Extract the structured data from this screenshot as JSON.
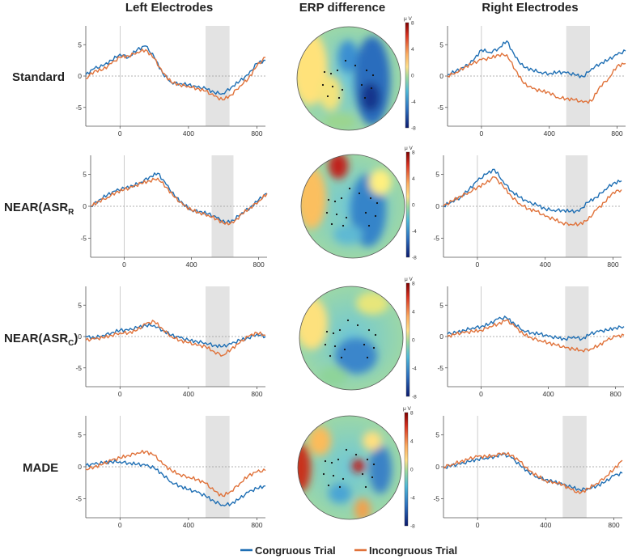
{
  "figure": {
    "col_titles": [
      "Left Electrodes",
      "ERP difference",
      "Right Electrodes"
    ],
    "rows": [
      {
        "label_main": "Standard",
        "label_sub": "",
        "label_tail": ""
      },
      {
        "label_main": "NEAR(ASR",
        "label_sub": "R",
        "label_tail": ""
      },
      {
        "label_main": "NEAR(ASR",
        "label_sub": "C",
        "label_tail": ")"
      },
      {
        "label_main": "MADE",
        "label_sub": "",
        "label_tail": ""
      }
    ],
    "colorbar": {
      "unit": "μ V",
      "ticks": [
        "8",
        "4",
        "0",
        "-4",
        "-8"
      ]
    },
    "legend": {
      "series1": "Congruous Trial",
      "series2": "Incongruous Trial"
    },
    "colors": {
      "congruous": "#1f6fb4",
      "incongruous": "#e0723a",
      "shade": "#e3e3e3"
    }
  },
  "chart_data": {
    "type": "line",
    "xlabel": "",
    "ylabel": "",
    "xlim": [
      -200,
      850
    ],
    "ylim": [
      8,
      -8
    ],
    "y_inverted": true,
    "xticks": [
      0,
      400,
      800
    ],
    "yticks": [
      -5,
      0,
      5
    ],
    "legend_position": "bottom",
    "panels": [
      {
        "row": "Standard",
        "side": "Left Electrodes",
        "shade": [
          500,
          640
        ],
        "x": [
          -200,
          -150,
          -100,
          -50,
          0,
          50,
          100,
          150,
          200,
          250,
          300,
          350,
          400,
          450,
          500,
          550,
          600,
          650,
          700,
          750,
          800,
          850
        ],
        "series": [
          {
            "name": "Congruous Trial",
            "values": [
              0.2,
              1.2,
              1.6,
              2.5,
              3.5,
              3.0,
              4.2,
              4.8,
              3.0,
              0.4,
              -1.0,
              -1.2,
              -1.4,
              -1.8,
              -2.0,
              -2.6,
              -2.8,
              -1.8,
              -0.8,
              0.2,
              2.0,
              2.5
            ]
          },
          {
            "name": "Incongruous Trial",
            "values": [
              -0.4,
              0.8,
              1.0,
              2.0,
              3.0,
              3.2,
              3.8,
              4.2,
              2.8,
              0.5,
              -1.0,
              -1.4,
              -1.6,
              -2.0,
              -2.4,
              -3.2,
              -3.8,
              -3.0,
              -1.6,
              -0.4,
              1.6,
              3.0
            ]
          }
        ]
      },
      {
        "row": "Standard",
        "side": "Right Electrodes",
        "shade": [
          500,
          640
        ],
        "x": [
          -200,
          -150,
          -100,
          -50,
          0,
          50,
          100,
          150,
          200,
          250,
          300,
          350,
          400,
          450,
          500,
          550,
          600,
          650,
          700,
          750,
          800,
          850
        ],
        "series": [
          {
            "name": "Congruous Trial",
            "values": [
              0.2,
              0.8,
              1.4,
              2.4,
              4.2,
              3.8,
              4.4,
              5.6,
              3.0,
              1.4,
              1.0,
              0.6,
              0.4,
              0.6,
              0.5,
              0.2,
              -0.1,
              1.2,
              2.0,
              2.6,
              3.4,
              4.0
            ]
          },
          {
            "name": "Incongruous Trial",
            "values": [
              0.0,
              0.6,
              1.4,
              2.0,
              2.6,
              2.8,
              3.4,
              3.4,
              1.0,
              -1.2,
              -2.0,
              -2.4,
              -2.6,
              -3.4,
              -3.6,
              -3.8,
              -4.2,
              -4.0,
              -1.6,
              -0.4,
              1.6,
              2.0
            ]
          }
        ]
      },
      {
        "row": "NEAR(ASR_R)",
        "side": "Left Electrodes",
        "shade": [
          520,
          650
        ],
        "x": [
          -200,
          -150,
          -100,
          -50,
          0,
          50,
          100,
          150,
          200,
          250,
          300,
          350,
          400,
          450,
          500,
          550,
          600,
          650,
          700,
          750,
          800,
          850
        ],
        "series": [
          {
            "name": "Congruous Trial",
            "values": [
              0.0,
              1.0,
              1.8,
              2.4,
              2.8,
              3.2,
              3.8,
              4.6,
              5.2,
              3.4,
              1.6,
              0.4,
              -0.6,
              -0.8,
              -1.2,
              -1.8,
              -2.6,
              -2.2,
              -1.0,
              -0.2,
              1.0,
              2.0
            ]
          },
          {
            "name": "Incongruous Trial",
            "values": [
              0.0,
              0.8,
              1.4,
              2.2,
              2.6,
              3.0,
              3.6,
              4.0,
              4.4,
              3.0,
              1.4,
              0.2,
              -0.6,
              -1.0,
              -1.4,
              -2.0,
              -2.8,
              -2.6,
              -1.2,
              -0.2,
              0.8,
              2.0
            ]
          }
        ]
      },
      {
        "row": "NEAR(ASR_R)",
        "side": "Right Electrodes",
        "shade": [
          520,
          650
        ],
        "x": [
          -200,
          -150,
          -100,
          -50,
          0,
          50,
          100,
          150,
          200,
          250,
          300,
          350,
          400,
          450,
          500,
          550,
          600,
          650,
          700,
          750,
          800,
          850
        ],
        "series": [
          {
            "name": "Congruous Trial",
            "values": [
              0.0,
              0.8,
              1.4,
              2.6,
              4.0,
              5.0,
              5.8,
              4.0,
              2.4,
              1.4,
              0.6,
              0.2,
              -0.4,
              -0.6,
              -0.6,
              -0.8,
              -0.8,
              0.6,
              1.4,
              2.6,
              3.6,
              4.0
            ]
          },
          {
            "name": "Incongruous Trial",
            "values": [
              0.0,
              0.8,
              1.6,
              2.2,
              3.0,
              3.6,
              4.6,
              3.2,
              1.6,
              0.4,
              -0.4,
              -0.8,
              -1.6,
              -2.0,
              -2.6,
              -2.8,
              -2.8,
              -2.2,
              -0.6,
              0.6,
              2.2,
              2.6
            ]
          }
        ]
      },
      {
        "row": "NEAR(ASR_C)",
        "side": "Left Electrodes",
        "shade": [
          500,
          640
        ],
        "x": [
          -200,
          -150,
          -100,
          -50,
          0,
          50,
          100,
          150,
          200,
          250,
          300,
          350,
          400,
          450,
          500,
          550,
          600,
          650,
          700,
          750,
          800,
          850
        ],
        "series": [
          {
            "name": "Congruous Trial",
            "values": [
              0.0,
              -0.2,
              0.2,
              0.6,
              1.0,
              1.0,
              1.4,
              1.8,
              1.8,
              1.0,
              0.2,
              -0.2,
              -0.6,
              -0.8,
              -1.0,
              -1.4,
              -1.6,
              -1.2,
              -0.6,
              -0.2,
              0.4,
              0.0
            ]
          },
          {
            "name": "Incongruous Trial",
            "values": [
              -0.6,
              -0.4,
              -0.2,
              0.2,
              0.6,
              0.6,
              1.0,
              2.0,
              2.4,
              1.2,
              0.0,
              -0.6,
              -1.0,
              -1.4,
              -1.6,
              -2.4,
              -3.0,
              -2.0,
              -1.0,
              0.0,
              0.6,
              0.2
            ]
          }
        ]
      },
      {
        "row": "NEAR(ASR_C)",
        "side": "Right Electrodes",
        "shade": [
          500,
          640
        ],
        "x": [
          -200,
          -150,
          -100,
          -50,
          0,
          50,
          100,
          150,
          200,
          250,
          300,
          350,
          400,
          450,
          500,
          550,
          600,
          650,
          700,
          750,
          800,
          850
        ],
        "series": [
          {
            "name": "Congruous Trial",
            "values": [
              0.4,
              0.6,
              1.0,
              1.4,
              1.6,
              2.0,
              2.8,
              3.0,
              2.0,
              1.0,
              0.6,
              0.4,
              0.0,
              -0.2,
              -0.4,
              0.0,
              -0.4,
              0.4,
              0.8,
              1.0,
              1.4,
              1.6
            ]
          },
          {
            "name": "Incongruous Trial",
            "values": [
              0.0,
              0.4,
              0.6,
              0.8,
              1.0,
              1.6,
              2.0,
              2.6,
              1.6,
              0.4,
              -0.2,
              -0.6,
              -1.0,
              -1.4,
              -1.8,
              -2.0,
              -2.2,
              -2.0,
              -1.4,
              -0.6,
              0.0,
              0.2
            ]
          }
        ]
      },
      {
        "row": "MADE",
        "side": "Left Electrodes",
        "shade": [
          500,
          640
        ],
        "x": [
          -200,
          -150,
          -100,
          -50,
          0,
          50,
          100,
          150,
          200,
          250,
          300,
          350,
          400,
          450,
          500,
          550,
          600,
          650,
          700,
          750,
          800,
          850
        ],
        "series": [
          {
            "name": "Congruous Trial",
            "values": [
              0.2,
              0.4,
              0.6,
              0.8,
              0.8,
              0.6,
              0.4,
              0.2,
              -0.2,
              -1.2,
              -2.4,
              -3.0,
              -3.6,
              -4.0,
              -4.6,
              -5.4,
              -6.0,
              -5.8,
              -5.0,
              -4.0,
              -3.4,
              -3.0
            ]
          },
          {
            "name": "Incongruous Trial",
            "values": [
              -0.4,
              0.0,
              0.4,
              1.0,
              1.4,
              1.8,
              2.2,
              2.4,
              1.8,
              0.4,
              -0.6,
              -1.2,
              -1.6,
              -2.0,
              -2.6,
              -3.8,
              -4.6,
              -3.8,
              -2.6,
              -1.4,
              -0.8,
              -0.6
            ]
          }
        ]
      },
      {
        "row": "MADE",
        "side": "Right Electrodes",
        "shade": [
          500,
          640
        ],
        "x": [
          -200,
          -150,
          -100,
          -50,
          0,
          50,
          100,
          150,
          200,
          250,
          300,
          350,
          400,
          450,
          500,
          550,
          600,
          650,
          700,
          750,
          800,
          850
        ],
        "series": [
          {
            "name": "Congruous Trial",
            "values": [
              -0.2,
              0.2,
              0.4,
              0.8,
              1.2,
              1.4,
              1.6,
              2.0,
              1.4,
              0.2,
              -0.8,
              -1.6,
              -2.0,
              -2.4,
              -2.8,
              -3.2,
              -3.6,
              -3.4,
              -3.0,
              -2.4,
              -1.4,
              -1.0
            ]
          },
          {
            "name": "Incongruous Trial",
            "values": [
              0.0,
              0.4,
              0.8,
              1.2,
              1.6,
              1.6,
              1.8,
              2.2,
              1.8,
              0.8,
              -0.6,
              -1.4,
              -2.2,
              -2.4,
              -2.8,
              -3.6,
              -4.2,
              -3.4,
              -2.6,
              -1.6,
              -0.4,
              1.0
            ]
          }
        ]
      }
    ]
  }
}
